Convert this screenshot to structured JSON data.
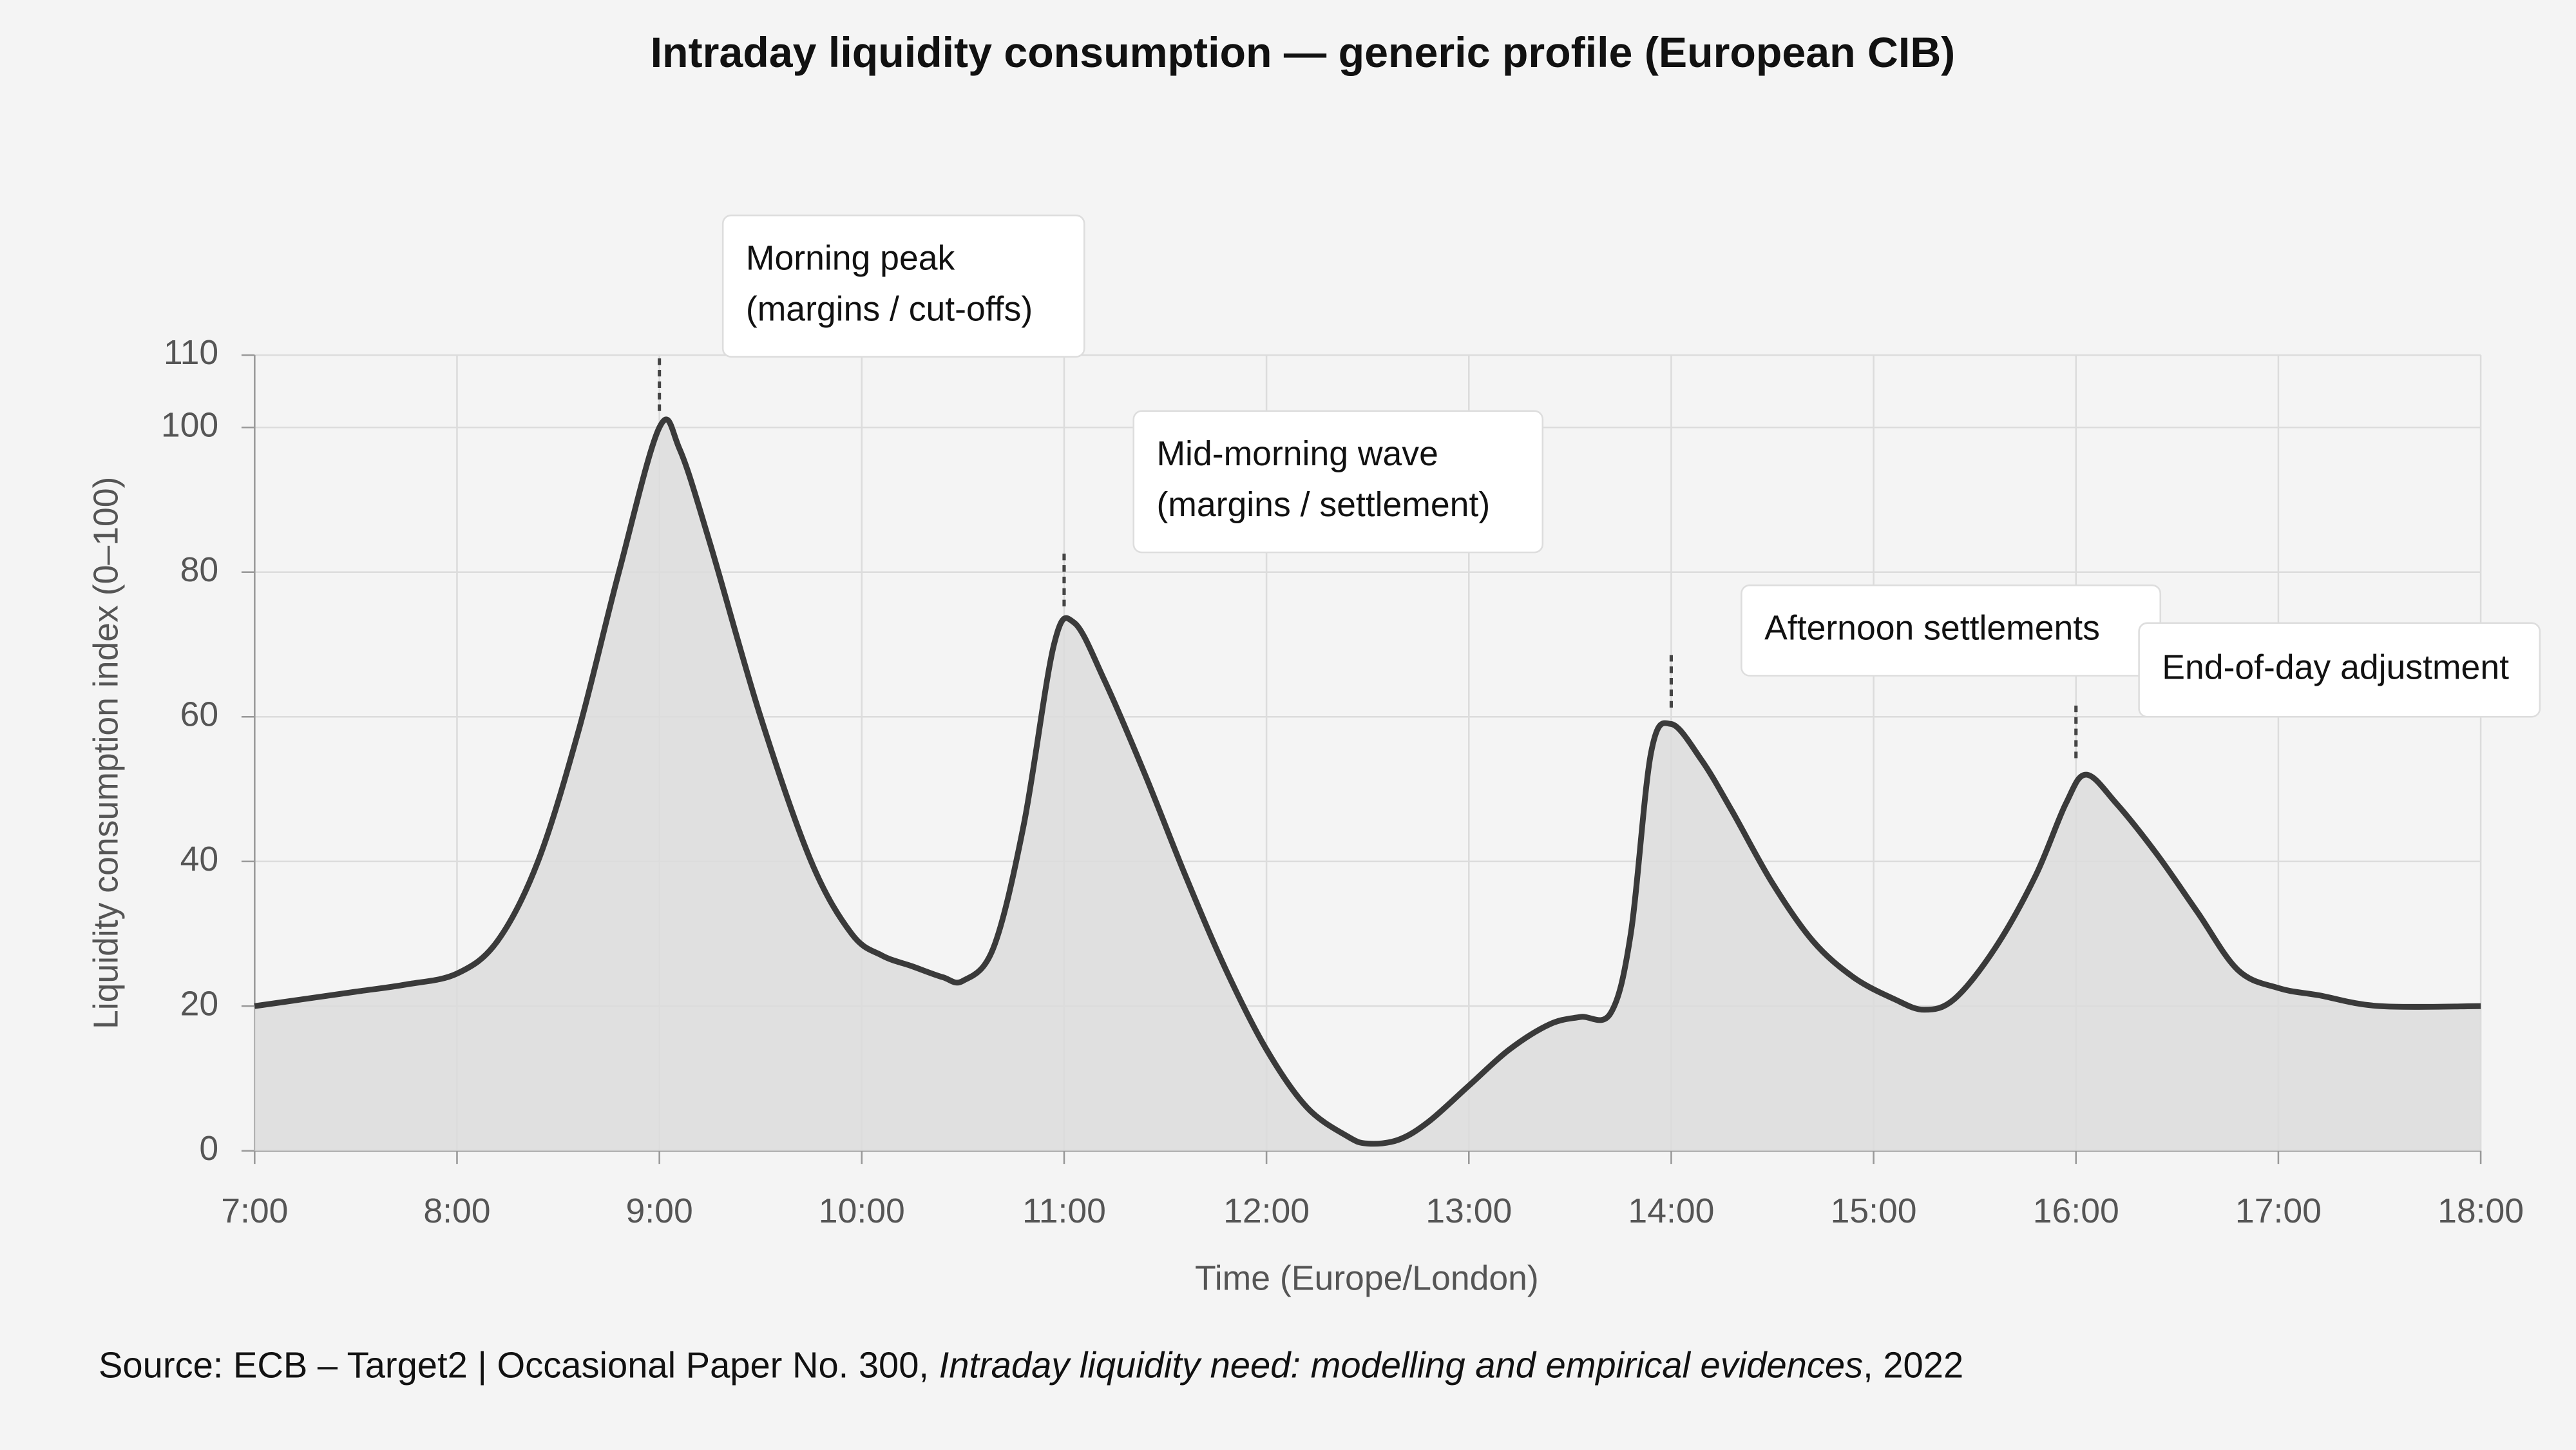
{
  "chart_data": {
    "type": "area",
    "title": "Intraday liquidity consumption — generic profile (European CIB)",
    "xlabel": "Time (Europe/London)",
    "ylabel": "Liquidity consumption index (0–100)",
    "x": [
      7.0,
      7.25,
      7.5,
      7.75,
      8.0,
      8.2,
      8.4,
      8.6,
      8.8,
      9.0,
      9.1,
      9.25,
      9.5,
      9.75,
      9.95,
      10.1,
      10.25,
      10.4,
      10.5,
      10.65,
      10.8,
      10.95,
      11.05,
      11.2,
      11.4,
      11.6,
      11.8,
      12.0,
      12.2,
      12.4,
      12.5,
      12.65,
      12.8,
      13.0,
      13.2,
      13.4,
      13.55,
      13.7,
      13.8,
      13.9,
      14.0,
      14.15,
      14.3,
      14.5,
      14.7,
      14.9,
      15.1,
      15.25,
      15.4,
      15.6,
      15.8,
      15.95,
      16.05,
      16.2,
      16.4,
      16.6,
      16.8,
      17.0,
      17.2,
      17.5,
      18.0
    ],
    "values": [
      20,
      21,
      22,
      23,
      24.5,
      29,
      40,
      58,
      80,
      100,
      97,
      84,
      60,
      40,
      30,
      27,
      25.5,
      24,
      23.5,
      28,
      45,
      70,
      73,
      65,
      52,
      38,
      25,
      14,
      6,
      2,
      1,
      1.5,
      4,
      9,
      14,
      17.5,
      18.5,
      19,
      30,
      55,
      59,
      54,
      47,
      37,
      29,
      24,
      21,
      19.5,
      21,
      28,
      38,
      48,
      52,
      48,
      41,
      33,
      25,
      22.5,
      21.5,
      20,
      20
    ],
    "color": "#3a3a3a",
    "fill": "#dcdcdc",
    "xlim": [
      7,
      18
    ],
    "ylim": [
      0,
      110
    ],
    "xticks": [
      {
        "value": 7,
        "label": "7:00"
      },
      {
        "value": 8,
        "label": "8:00"
      },
      {
        "value": 9,
        "label": "9:00"
      },
      {
        "value": 10,
        "label": "10:00"
      },
      {
        "value": 11,
        "label": "11:00"
      },
      {
        "value": 12,
        "label": "12:00"
      },
      {
        "value": 13,
        "label": "13:00"
      },
      {
        "value": 14,
        "label": "14:00"
      },
      {
        "value": 15,
        "label": "15:00"
      },
      {
        "value": 16,
        "label": "16:00"
      },
      {
        "value": 17,
        "label": "17:00"
      },
      {
        "value": 18,
        "label": "18:00"
      }
    ],
    "yticks": [
      0,
      20,
      40,
      60,
      80,
      100,
      110
    ],
    "grid": true,
    "annotations": [
      {
        "lines": [
          "Morning peak",
          "(margins / cut-offs)"
        ],
        "x": 9,
        "y": 100
      },
      {
        "lines": [
          "Mid-morning wave",
          "(margins / settlement)"
        ],
        "x": 11,
        "y": 73
      },
      {
        "lines": [
          "Afternoon settlements"
        ],
        "x": 14,
        "y": 59
      },
      {
        "lines": [
          "End-of-day adjustment"
        ],
        "x": 16,
        "y": 52
      }
    ],
    "source": {
      "prefix": "Source: ECB – Target2 | Occasional Paper No. 300, ",
      "italic": "Intraday liquidity need: modelling and empirical evidences",
      "suffix": ", 2022"
    }
  }
}
